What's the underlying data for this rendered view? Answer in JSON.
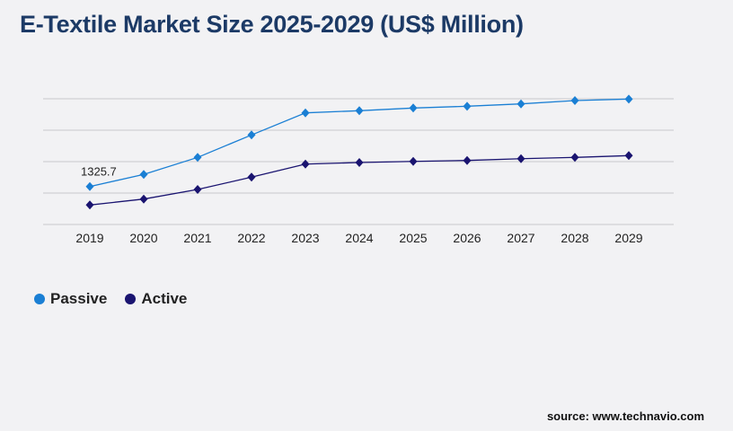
{
  "title": "E-Textile Market Size 2025-2029 (US$ Million)",
  "source": "source: www.technavio.com",
  "chart_data": {
    "type": "line",
    "title": "E-Textile Market Size 2025-2029 (US$ Million)",
    "categories": [
      "2019",
      "2020",
      "2021",
      "2022",
      "2023",
      "2024",
      "2025",
      "2026",
      "2027",
      "2028",
      "2029"
    ],
    "series": [
      {
        "name": "Passive",
        "color": "#1a7fd4",
        "values": [
          1325.7,
          1746,
          2341,
          3125,
          3896,
          3971,
          4065,
          4127,
          4209,
          4325,
          4378
        ]
      },
      {
        "name": "Active",
        "color": "#1a1470",
        "values": [
          680,
          887,
          1222,
          1652,
          2109,
          2162,
          2203,
          2235,
          2297,
          2341,
          2404
        ]
      }
    ],
    "data_labels": [
      {
        "series": "Passive",
        "category": "2019",
        "text": "1325.7"
      }
    ],
    "ylim": [
      0,
      4388
    ],
    "grid": true,
    "legend": "bottom-left"
  }
}
